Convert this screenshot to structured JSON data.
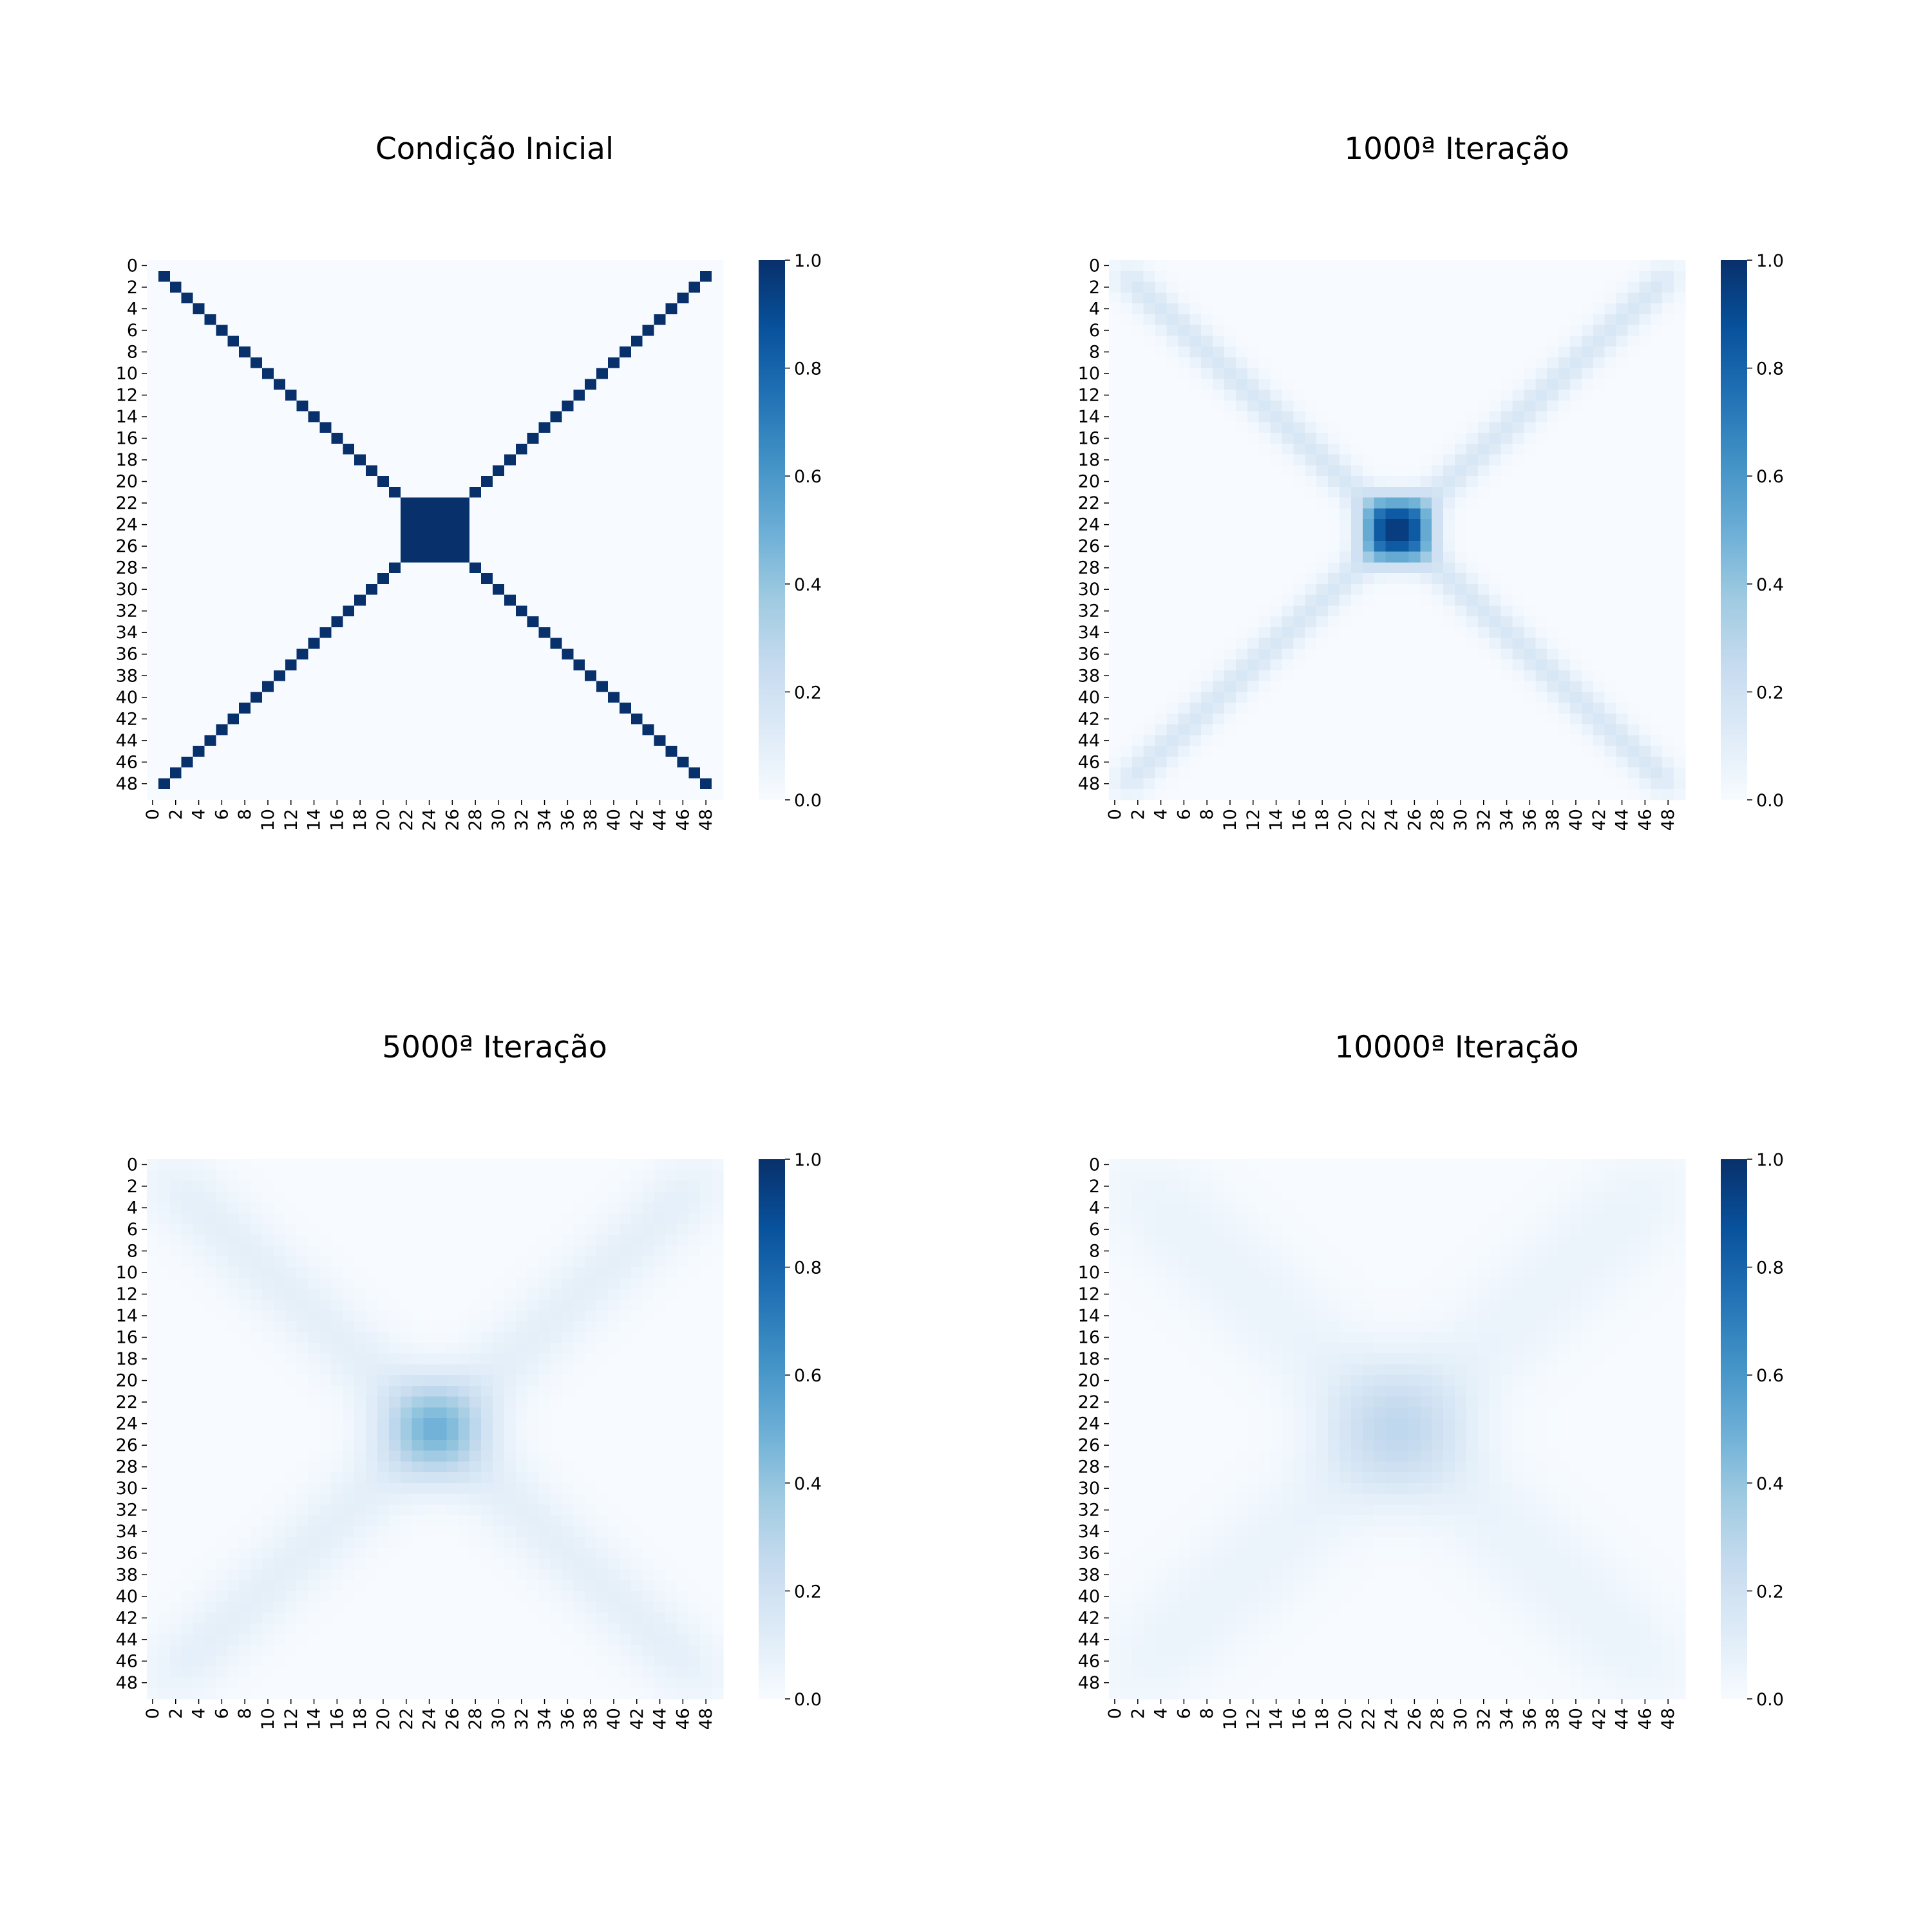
{
  "figure": {
    "panels": [
      {
        "title": "Condição Inicial"
      },
      {
        "title": "1000ª Iteração"
      },
      {
        "title": "5000ª Iteração"
      },
      {
        "title": "10000ª Iteração"
      }
    ]
  },
  "chart_data": [
    {
      "type": "heatmap",
      "title": "Condição Inicial",
      "grid_size": 50,
      "x_tick_labels": [
        "0",
        "2",
        "4",
        "6",
        "8",
        "10",
        "12",
        "14",
        "16",
        "18",
        "20",
        "22",
        "24",
        "26",
        "28",
        "30",
        "32",
        "34",
        "36",
        "38",
        "40",
        "42",
        "44",
        "46",
        "48"
      ],
      "y_tick_labels": [
        "0",
        "2",
        "4",
        "6",
        "8",
        "10",
        "12",
        "14",
        "16",
        "18",
        "20",
        "22",
        "24",
        "26",
        "28",
        "30",
        "32",
        "34",
        "36",
        "38",
        "40",
        "42",
        "44",
        "46",
        "48"
      ],
      "colormap": "Blues",
      "colorbar_ticks": [
        "0.0",
        "0.2",
        "0.4",
        "0.6",
        "0.8",
        "1.0"
      ],
      "vmin": 0,
      "vmax": 1,
      "pattern": {
        "description": "value 1.0 on both diagonals (rows/cols 1-48) and a 1.0 block at rows/cols 22-27; 0.0 elsewhere",
        "diag_min": 1,
        "diag_max": 48,
        "block_rows": [
          22,
          27
        ],
        "block_cols": [
          22,
          27
        ],
        "diag_value": 1.0,
        "block_value": 1.0,
        "background": 0.0,
        "diffusion_sigma": 0
      }
    },
    {
      "type": "heatmap",
      "title": "1000ª Iteração",
      "grid_size": 50,
      "x_tick_labels": [
        "0",
        "2",
        "4",
        "6",
        "8",
        "10",
        "12",
        "14",
        "16",
        "18",
        "20",
        "22",
        "24",
        "26",
        "28",
        "30",
        "32",
        "34",
        "36",
        "38",
        "40",
        "42",
        "44",
        "46",
        "48"
      ],
      "y_tick_labels": [
        "0",
        "2",
        "4",
        "6",
        "8",
        "10",
        "12",
        "14",
        "16",
        "18",
        "20",
        "22",
        "24",
        "26",
        "28",
        "30",
        "32",
        "34",
        "36",
        "38",
        "40",
        "42",
        "44",
        "46",
        "48"
      ],
      "colormap": "Blues",
      "colorbar_ticks": [
        "0.0",
        "0.2",
        "0.4",
        "0.6",
        "0.8",
        "1.0"
      ],
      "vmin": 0,
      "vmax": 1,
      "center_peak_value": 0.95,
      "diagonal_peak_value": 0.15,
      "pattern": {
        "diffusion_sigma": 1.1
      }
    },
    {
      "type": "heatmap",
      "title": "5000ª Iteração",
      "grid_size": 50,
      "x_tick_labels": [
        "0",
        "2",
        "4",
        "6",
        "8",
        "10",
        "12",
        "14",
        "16",
        "18",
        "20",
        "22",
        "24",
        "26",
        "28",
        "30",
        "32",
        "34",
        "36",
        "38",
        "40",
        "42",
        "44",
        "46",
        "48"
      ],
      "y_tick_labels": [
        "0",
        "2",
        "4",
        "6",
        "8",
        "10",
        "12",
        "14",
        "16",
        "18",
        "20",
        "22",
        "24",
        "26",
        "28",
        "30",
        "32",
        "34",
        "36",
        "38",
        "40",
        "42",
        "44",
        "46",
        "48"
      ],
      "colormap": "Blues",
      "colorbar_ticks": [
        "0.0",
        "0.2",
        "0.4",
        "0.6",
        "0.8",
        "1.0"
      ],
      "vmin": 0,
      "vmax": 1,
      "center_peak_value": 0.48,
      "diagonal_peak_value": 0.09,
      "pattern": {
        "diffusion_sigma": 2.45
      }
    },
    {
      "type": "heatmap",
      "title": "10000ª Iteração",
      "grid_size": 50,
      "x_tick_labels": [
        "0",
        "2",
        "4",
        "6",
        "8",
        "10",
        "12",
        "14",
        "16",
        "18",
        "20",
        "22",
        "24",
        "26",
        "28",
        "30",
        "32",
        "34",
        "36",
        "38",
        "40",
        "42",
        "44",
        "46",
        "48"
      ],
      "y_tick_labels": [
        "0",
        "2",
        "4",
        "6",
        "8",
        "10",
        "12",
        "14",
        "16",
        "18",
        "20",
        "22",
        "24",
        "26",
        "28",
        "30",
        "32",
        "34",
        "36",
        "38",
        "40",
        "42",
        "44",
        "46",
        "48"
      ],
      "colormap": "Blues",
      "colorbar_ticks": [
        "0.0",
        "0.2",
        "0.4",
        "0.6",
        "0.8",
        "1.0"
      ],
      "vmin": 0,
      "vmax": 1,
      "center_peak_value": 0.27,
      "diagonal_peak_value": 0.06,
      "pattern": {
        "diffusion_sigma": 3.45
      }
    }
  ]
}
